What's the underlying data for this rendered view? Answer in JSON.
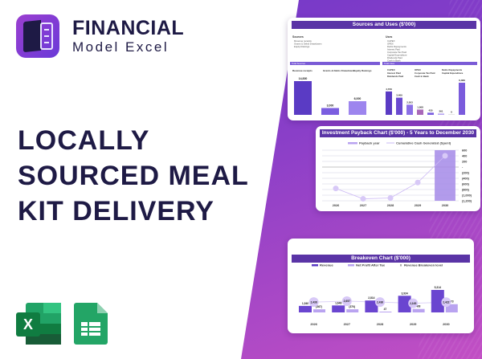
{
  "brand": {
    "name": "FINANCIAL",
    "sub": "Model Excel"
  },
  "title": [
    "LOCALLY",
    "SOURCED MEAL",
    "KIT DELIVERY"
  ],
  "icons": [
    "excel-icon",
    "google-sheets-icon"
  ],
  "colors": {
    "navy": "#1e1a45",
    "purple": "#5a34a6",
    "bar": "#6a45d0",
    "light": "#b9a3f0"
  },
  "sources_uses": {
    "title": "Sources and Uses ($'000)",
    "sources_label": "Sources",
    "uses_label": "Uses",
    "total_sources": "Total Sources",
    "total_uses": "Total Uses",
    "chart1": {
      "categories": [
        "Revenue receipts",
        "Grants & Debts Drawdowns",
        "Equity Raisings"
      ],
      "values": [
        14830,
        3000,
        6000
      ],
      "labels": [
        "14,830",
        "3,000",
        "6,000"
      ]
    },
    "chart2": {
      "categories": [
        "CAPEX",
        "OPEX",
        "Debts Repayments",
        "Interest Paid",
        "Corporate Tax Paid",
        "Capital Expenditure",
        "Dividends Paid",
        "Cash in Bank"
      ],
      "values": [
        4729,
        3469,
        2053,
        1068,
        435,
        261,
        0,
        6489
      ],
      "labels": [
        "4,729",
        "3,469",
        "2,053",
        "1,068",
        "435",
        "261",
        "0",
        "6,489"
      ]
    }
  },
  "chart_data": [
    {
      "type": "line",
      "title": "Investment Payback Chart ($'000) - 5 Years to December 2030",
      "categories": [
        "2026",
        "2027",
        "2028",
        "2029",
        "2030"
      ],
      "series": [
        {
          "name": "Payback year",
          "type": "bar",
          "values": [
            null,
            null,
            null,
            null,
            600
          ]
        },
        {
          "name": "Cumulative Cash Generated (Spent)",
          "values": [
            -760,
            -1130,
            -1100,
            -550,
            400
          ]
        }
      ],
      "yticks": [
        "600",
        "400",
        "200",
        "-",
        "(200)",
        "(400)",
        "(600)",
        "(800)",
        "(1,000)",
        "(1,200)"
      ],
      "ylim": [
        -1200,
        600
      ]
    },
    {
      "type": "bar",
      "title": "Breakeven Chart ($'000)",
      "categories": [
        "2026",
        "2027",
        "2028",
        "2029",
        "2030"
      ],
      "series": [
        {
          "name": "Revenue",
          "values": [
            1540,
            1648,
            2814,
            3934,
            5314
          ],
          "labels": [
            "1,540",
            "1,648",
            "2,814",
            "3,934",
            "5,314"
          ]
        },
        {
          "name": "Net Profit After Tax",
          "values": [
            -367,
            -370,
            47,
            408,
            973
          ],
          "labels": [
            "(367)",
            "(370)",
            "47",
            "408",
            "973"
          ]
        },
        {
          "name": "Revenue Breakeven level",
          "values": [
            2438,
            2657,
            2436,
            2165,
            2422
          ],
          "labels": [
            "2,438",
            "2,657",
            "2,436",
            "2,165",
            "2,422"
          ]
        }
      ]
    }
  ]
}
